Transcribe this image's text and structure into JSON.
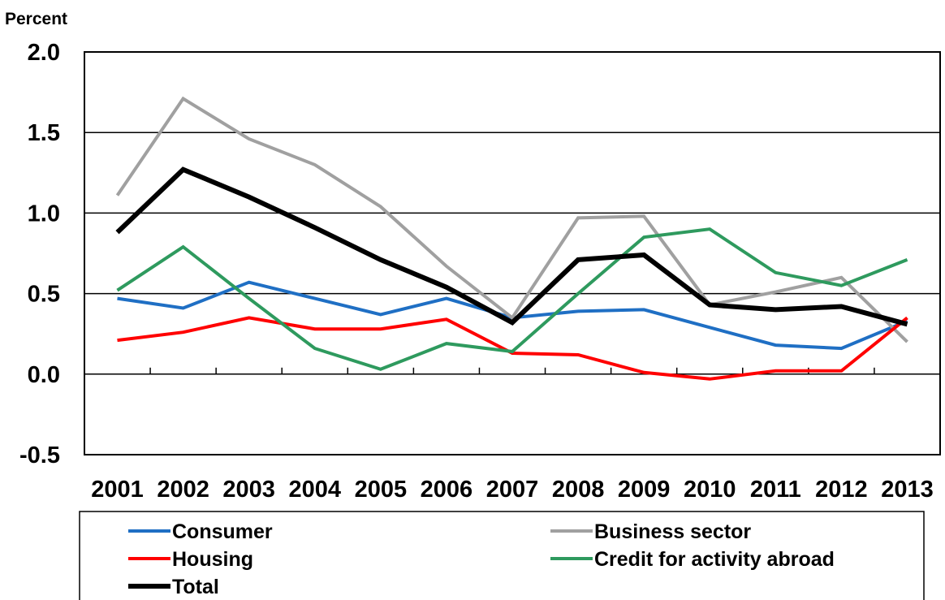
{
  "chart_data": {
    "type": "line",
    "ylabel": "Percent",
    "ylim": [
      -0.5,
      2.0
    ],
    "yticks": [
      "2.0",
      "1.5",
      "1.0",
      "0.5",
      "0.0",
      "-0.5"
    ],
    "ytick_values": [
      2.0,
      1.5,
      1.0,
      0.5,
      0.0,
      -0.5
    ],
    "categories": [
      "2001",
      "2002",
      "2003",
      "2004",
      "2005",
      "2006",
      "2007",
      "2008",
      "2009",
      "2010",
      "2011",
      "2012",
      "2013"
    ],
    "grid": "horizontal",
    "legend_position": "bottom",
    "series": [
      {
        "name": "Consumer",
        "color": "#1f6fc4",
        "width": 4,
        "values": [
          0.47,
          0.41,
          0.57,
          0.47,
          0.37,
          0.47,
          0.35,
          0.39,
          0.4,
          0.29,
          0.18,
          0.16,
          0.33
        ]
      },
      {
        "name": "Business sector",
        "color": "#a0a0a0",
        "width": 4,
        "values": [
          1.11,
          1.71,
          1.46,
          1.3,
          1.04,
          0.67,
          0.35,
          0.97,
          0.98,
          0.43,
          0.51,
          0.6,
          0.2
        ]
      },
      {
        "name": "Housing",
        "color": "#ff0000",
        "width": 4,
        "values": [
          0.21,
          0.26,
          0.35,
          0.28,
          0.28,
          0.34,
          0.13,
          0.12,
          0.01,
          -0.03,
          0.02,
          0.02,
          0.35
        ]
      },
      {
        "name": "Credit for activity abroad",
        "color": "#2e9a5e",
        "width": 4,
        "values": [
          0.52,
          0.79,
          0.47,
          0.16,
          0.03,
          0.19,
          0.14,
          0.5,
          0.85,
          0.9,
          0.63,
          0.55,
          0.71
        ]
      },
      {
        "name": "Total",
        "color": "#000000",
        "width": 6,
        "values": [
          0.88,
          1.27,
          1.1,
          0.91,
          0.71,
          0.54,
          0.32,
          0.71,
          0.74,
          0.43,
          0.4,
          0.42,
          0.31
        ]
      }
    ]
  }
}
